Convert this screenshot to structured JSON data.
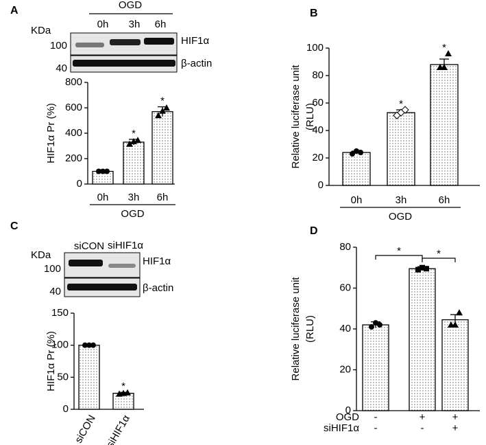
{
  "panel_labels": [
    "A",
    "B",
    "C",
    "D"
  ],
  "blots": [
    {
      "header": "OGD",
      "unit": "KDa",
      "lanes": [
        "0h",
        "3h",
        "6h"
      ],
      "rows": [
        {
          "kda": "100",
          "protein": "HIF1α"
        },
        {
          "kda": "40",
          "protein": "β-actin"
        }
      ]
    },
    {
      "unit": "KDa",
      "lanes": [
        "siCON",
        "siHIF1α"
      ],
      "rows": [
        {
          "kda": "100",
          "protein": "HIF1α"
        },
        {
          "kda": "40",
          "protein": "β-actin"
        }
      ]
    }
  ],
  "chart_data": [
    {
      "type": "bar",
      "ylabel": [
        "HIF1α  Pr (%)"
      ],
      "categories": [
        "0h",
        "3h",
        "6h"
      ],
      "group_label": "OGD",
      "values": [
        100,
        330,
        570
      ],
      "errors": [
        4,
        22,
        38
      ],
      "markers": [
        null,
        "*",
        "*"
      ],
      "points": [
        [
          100,
          100,
          100
        ],
        [
          315,
          335,
          345
        ],
        [
          540,
          575,
          600
        ]
      ],
      "point_shapes": [
        "circle",
        "triangle",
        "triangle"
      ],
      "ylim": [
        0,
        800
      ],
      "yticks": [
        0,
        200,
        400,
        600,
        800
      ],
      "color": "#ffffff",
      "pattern": "dots"
    },
    {
      "type": "bar",
      "ylabel": [
        "Relative luciferase unit",
        "(RLU)"
      ],
      "categories": [
        "0h",
        "3h",
        "6h"
      ],
      "group_label": "OGD",
      "values": [
        24,
        53,
        88
      ],
      "errors": [
        1,
        2,
        4
      ],
      "markers": [
        null,
        "*",
        "*"
      ],
      "points": [
        [
          23,
          25,
          24
        ],
        [
          51,
          53,
          55
        ],
        [
          86,
          86,
          96
        ]
      ],
      "point_shapes": [
        "circle",
        "diamond",
        "triangle"
      ],
      "ylim": [
        0,
        100
      ],
      "yticks": [
        0,
        20,
        40,
        60,
        80,
        100
      ],
      "color": "#ffffff",
      "pattern": "dots"
    },
    {
      "type": "bar",
      "ylabel": [
        "HIF1α  Pr (%)"
      ],
      "categories": [
        "siCON",
        "siHIF1α"
      ],
      "values": [
        100,
        25
      ],
      "errors": [
        0.5,
        1.5
      ],
      "markers": [
        null,
        "*"
      ],
      "points": [
        [
          100,
          100,
          100
        ],
        [
          24,
          25,
          26
        ]
      ],
      "point_shapes": [
        "circle",
        "triangle"
      ],
      "ylim": [
        0,
        150
      ],
      "yticks": [
        0,
        50,
        100,
        150
      ],
      "color": "#ffffff",
      "pattern": "dots"
    },
    {
      "type": "bar",
      "ylabel": [
        "Relative luciferase unit",
        "(RLU)"
      ],
      "values": [
        42,
        69.5,
        44.5
      ],
      "errors": [
        1.5,
        1,
        2.5
      ],
      "points": [
        [
          41,
          43,
          42
        ],
        [
          69,
          70,
          69.5
        ],
        [
          42,
          42,
          48
        ]
      ],
      "point_shapes": [
        "circle",
        "square",
        "triangle"
      ],
      "conditions": [
        {
          "label": "OGD",
          "signs": [
            "-",
            "+",
            "+"
          ]
        },
        {
          "label": "siHIF1α",
          "signs": [
            "-",
            "-",
            "+"
          ]
        }
      ],
      "comparisons": [
        {
          "from": 0,
          "to": 1,
          "text": "*"
        },
        {
          "from": 1,
          "to": 2,
          "text": "*"
        }
      ],
      "ylim": [
        0,
        80
      ],
      "yticks": [
        0,
        20,
        40,
        60,
        80
      ],
      "color": "#ffffff",
      "pattern": "dots"
    }
  ]
}
